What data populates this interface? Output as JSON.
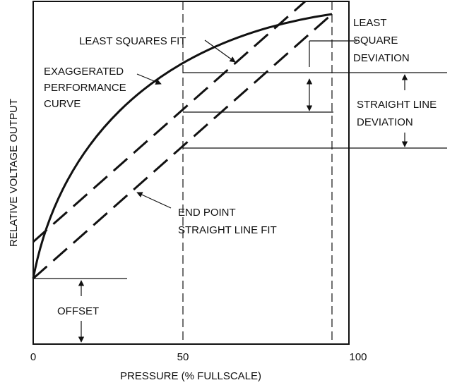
{
  "axes": {
    "x_label": "PRESSURE (% FULLSCALE)",
    "y_label": "RELATIVE VOLTAGE OUTPUT",
    "x_ticks": [
      "0",
      "50",
      "100"
    ]
  },
  "annotations": {
    "least_squares_fit": "LEAST SQUARES FIT",
    "exaggerated_line1": "EXAGGERATED",
    "exaggerated_line2": "PERFORMANCE",
    "exaggerated_line3": "CURVE",
    "least_square_dev_line1": "LEAST",
    "least_square_dev_line2": "SQUARE",
    "least_square_dev_line3": "DEVIATION",
    "straight_line_dev_line1": "STRAIGHT LINE",
    "straight_line_dev_line2": "DEVIATION",
    "end_point_line1": "END POINT",
    "end_point_line2": "STRAIGHT LINE FIT",
    "offset": "OFFSET"
  },
  "colors": {
    "ink": "#111111",
    "background": "#ffffff"
  }
}
